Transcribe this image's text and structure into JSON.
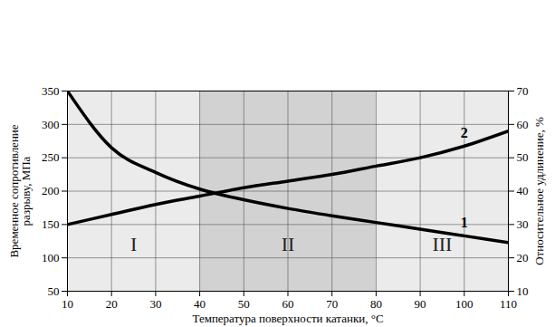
{
  "chart_data": {
    "type": "line",
    "x_label": "Температура поверхности катанки, °С",
    "y_label": "Временное сопротивление\nразрыву, МПа",
    "y2_label": "Относительное удлинение, %",
    "x": [
      10,
      20,
      30,
      40,
      50,
      60,
      70,
      80,
      90,
      100,
      110
    ],
    "series": [
      {
        "name": "1",
        "color": "#000000",
        "values": [
          350,
          265,
          228,
          203,
          187,
          174,
          163,
          153,
          143,
          133,
          123
        ]
      },
      {
        "name": "2",
        "color": "#000000",
        "axis": "y2",
        "values": [
          30,
          33,
          36,
          38.5,
          41,
          43,
          45,
          47.5,
          50,
          53.5,
          58
        ]
      }
    ],
    "regions": [
      {
        "label": "I",
        "from": 10,
        "to": 40,
        "color": "#ebebeb"
      },
      {
        "label": "II",
        "from": 40,
        "to": 80,
        "color": "#d2d2d2"
      },
      {
        "label": "III",
        "from": 80,
        "to": 110,
        "color": "#ebebeb"
      }
    ],
    "xlim": [
      10,
      110
    ],
    "xticks": [
      10,
      20,
      30,
      40,
      50,
      60,
      70,
      80,
      90,
      100,
      110
    ],
    "ylim": [
      50,
      350
    ],
    "yticks": [
      50,
      100,
      150,
      200,
      250,
      300,
      350
    ],
    "y2lim": [
      10,
      70
    ],
    "y2ticks": [
      10,
      20,
      30,
      40,
      50,
      60,
      70
    ],
    "grid": true
  }
}
